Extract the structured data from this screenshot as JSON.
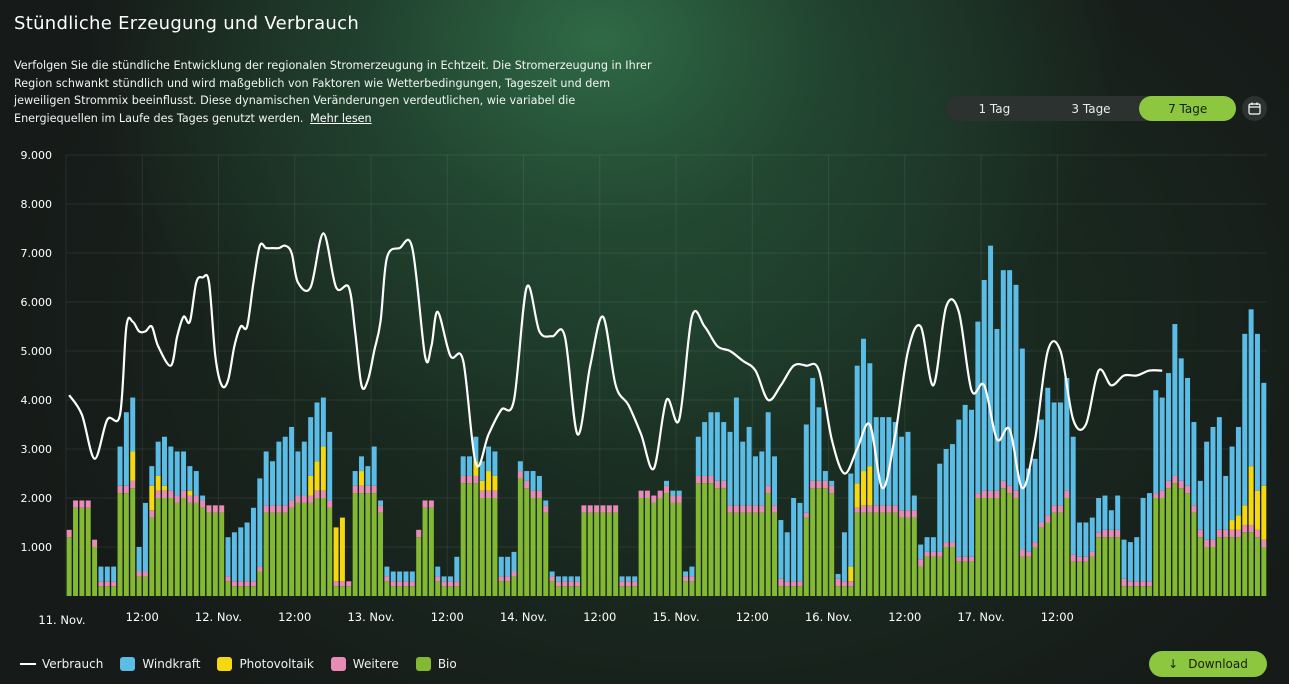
{
  "header": {
    "title": "Stündliche Erzeugung und Verbrauch",
    "description": "Verfolgen Sie die stündliche Entwicklung der regionalen Stromerzeugung in Echtzeit. Die Stromerzeugung in Ihrer Region schwankt stündlich und wird maßgeblich von Faktoren wie Wetterbedingungen, Tageszeit und dem jeweiligen Strommix beeinflusst. Diese dynamischen Veränderungen verdeutlichen, wie variabel die Energiequellen im Laufe des Tages genutzt werden.",
    "more_link": "Mehr lesen"
  },
  "range_tabs": [
    {
      "label": "1 Tag",
      "active": false
    },
    {
      "label": "3 Tage",
      "active": false
    },
    {
      "label": "7 Tage",
      "active": true
    }
  ],
  "icons": {
    "calendar": "calendar-icon",
    "download": "arrow-down-icon"
  },
  "download_label": "Download",
  "colors": {
    "accent": "#8dc63f",
    "Bio": "#82b832",
    "Weitere": "#e88bb5",
    "Photovoltaik": "#f5d80f",
    "Windkraft": "#5bbde6",
    "Verbrauch": "#ffffff"
  },
  "legend": [
    {
      "label": "Verbrauch",
      "kind": "line",
      "color": "#ffffff"
    },
    {
      "label": "Windkraft",
      "kind": "box",
      "color": "#5bbde6"
    },
    {
      "label": "Photovoltaik",
      "kind": "box",
      "color": "#f5d80f"
    },
    {
      "label": "Weitere",
      "kind": "box",
      "color": "#e88bb5"
    },
    {
      "label": "Bio",
      "kind": "box",
      "color": "#82b832"
    }
  ],
  "chart_data": {
    "type": "bar",
    "stacked": true,
    "ylim": [
      0,
      9000
    ],
    "y_ticks": [
      "1.000",
      "2.000",
      "3.000",
      "4.000",
      "5.000",
      "6.000",
      "7.000",
      "8.000",
      "9.000"
    ],
    "y_tick_values": [
      1000,
      2000,
      3000,
      4000,
      5000,
      6000,
      7000,
      8000,
      9000
    ],
    "x_tick_labels": [
      "11. Nov.",
      "12:00",
      "12. Nov.",
      "12:00",
      "13. Nov.",
      "12:00",
      "14. Nov.",
      "12:00",
      "15. Nov.",
      "12:00",
      "16. Nov.",
      "12:00",
      "17. Nov.",
      "12:00"
    ],
    "x_tick_hours": [
      0,
      12,
      24,
      36,
      48,
      60,
      72,
      84,
      96,
      108,
      120,
      132,
      144,
      156
    ],
    "grid": true,
    "legend_position": "bottom-left",
    "series_order": [
      "Bio",
      "Weitere",
      "Photovoltaik",
      "Windkraft"
    ],
    "series": [
      {
        "name": "Bio",
        "color": "#82b832",
        "values": [
          1200,
          1800,
          1800,
          1800,
          1000,
          200,
          200,
          200,
          2100,
          2100,
          2200,
          400,
          400,
          1600,
          2000,
          2000,
          2000,
          1900,
          2000,
          1900,
          1900,
          1800,
          1700,
          1700,
          1700,
          300,
          200,
          200,
          200,
          200,
          500,
          1700,
          1700,
          1700,
          1700,
          1800,
          1900,
          1900,
          1900,
          2000,
          2000,
          1800,
          200,
          200,
          200,
          2100,
          2100,
          2100,
          2100,
          1700,
          300,
          200,
          200,
          200,
          200,
          1200,
          1800,
          1800,
          300,
          200,
          200,
          200,
          2300,
          2300,
          2300,
          2000,
          2000,
          2000,
          300,
          300,
          400,
          2400,
          2200,
          2000,
          2000,
          1700,
          300,
          200,
          200,
          200,
          200,
          1700,
          1700,
          1700,
          1700,
          1700,
          1700,
          200,
          200,
          200,
          2000,
          2000,
          1900,
          2000,
          2100,
          1900,
          1900,
          300,
          300,
          2300,
          2300,
          2300,
          2200,
          2200,
          1700,
          1700,
          1700,
          1700,
          1700,
          1700,
          2100,
          1700,
          200,
          200,
          200,
          200,
          1600,
          2200,
          2200,
          2200,
          2100,
          200,
          200,
          200,
          1700,
          1700,
          1700,
          1700,
          1700,
          1700,
          1700,
          1600,
          1600,
          1600,
          600,
          800,
          800,
          800,
          1000,
          1000,
          700,
          700,
          700,
          2000,
          2000,
          2000,
          2000,
          2200,
          2100,
          2000,
          800,
          800,
          1000,
          1400,
          1500,
          1700,
          1700,
          2000,
          700,
          700,
          700,
          800,
          1200,
          1200,
          1200,
          1200,
          200,
          200,
          200,
          200,
          200,
          2000,
          2000,
          2200,
          2300,
          2200,
          2100,
          1700,
          1200,
          1000,
          1000,
          1200,
          1200,
          1200,
          1200,
          1300,
          1300,
          1200,
          1000
        ],
        "line_values": null
      },
      {
        "name": "Weitere",
        "color": "#e88bb5",
        "values": [
          150,
          150,
          150,
          150,
          150,
          100,
          100,
          100,
          150,
          150,
          150,
          100,
          100,
          150,
          150,
          150,
          150,
          150,
          150,
          150,
          150,
          150,
          150,
          150,
          150,
          100,
          100,
          100,
          100,
          100,
          100,
          150,
          150,
          150,
          150,
          150,
          150,
          150,
          150,
          150,
          150,
          150,
          100,
          100,
          100,
          150,
          150,
          150,
          150,
          150,
          100,
          100,
          100,
          100,
          100,
          150,
          150,
          150,
          100,
          100,
          100,
          100,
          150,
          150,
          150,
          150,
          150,
          150,
          100,
          100,
          100,
          150,
          150,
          150,
          150,
          150,
          100,
          100,
          100,
          100,
          100,
          150,
          150,
          150,
          150,
          150,
          150,
          100,
          100,
          100,
          150,
          150,
          150,
          150,
          150,
          150,
          150,
          100,
          100,
          150,
          150,
          150,
          150,
          150,
          150,
          150,
          150,
          150,
          150,
          150,
          150,
          150,
          150,
          100,
          100,
          100,
          100,
          150,
          150,
          150,
          150,
          150,
          100,
          100,
          100,
          150,
          150,
          150,
          150,
          150,
          150,
          150,
          150,
          150,
          150,
          100,
          100,
          100,
          100,
          100,
          100,
          100,
          100,
          100,
          150,
          150,
          150,
          150,
          150,
          150,
          150,
          100,
          100,
          100,
          150,
          150,
          150,
          150,
          150,
          100,
          100,
          100,
          100,
          150,
          150,
          150,
          150,
          100,
          100,
          100,
          100,
          100,
          150,
          150,
          150,
          150,
          150,
          150,
          150,
          150,
          150,
          150,
          150,
          150,
          150,
          150,
          150,
          150,
          150,
          150
        ]
      },
      {
        "name": "Photovoltaik",
        "color": "#f5d80f",
        "values": [
          0,
          0,
          0,
          0,
          0,
          0,
          0,
          0,
          0,
          0,
          600,
          0,
          0,
          500,
          300,
          100,
          0,
          0,
          0,
          100,
          0,
          0,
          0,
          0,
          0,
          0,
          0,
          0,
          0,
          0,
          0,
          0,
          0,
          0,
          0,
          0,
          0,
          0,
          400,
          600,
          900,
          0,
          1100,
          1300,
          0,
          0,
          300,
          0,
          0,
          0,
          0,
          0,
          0,
          0,
          0,
          0,
          0,
          0,
          0,
          0,
          0,
          0,
          0,
          0,
          300,
          200,
          400,
          300,
          0,
          0,
          0,
          0,
          0,
          0,
          0,
          0,
          0,
          0,
          0,
          0,
          0,
          0,
          0,
          0,
          0,
          0,
          0,
          0,
          0,
          0,
          0,
          0,
          0,
          0,
          0,
          0,
          0,
          0,
          0,
          0,
          0,
          0,
          0,
          0,
          0,
          0,
          0,
          0,
          0,
          0,
          0,
          0,
          0,
          0,
          0,
          0,
          0,
          0,
          0,
          0,
          0,
          0,
          0,
          300,
          500,
          700,
          800,
          0,
          0,
          0,
          0,
          0,
          0,
          0,
          0,
          0,
          0,
          0,
          0,
          0,
          0,
          0,
          0,
          0,
          0,
          0,
          0,
          0,
          0,
          0,
          0,
          0,
          0,
          0,
          0,
          0,
          0,
          0,
          0,
          0,
          0,
          0,
          0,
          0,
          0,
          0,
          0,
          0,
          0,
          0,
          0,
          0,
          0,
          0,
          0,
          0,
          0,
          0,
          0,
          0,
          0,
          0,
          0,
          200,
          300,
          400,
          1200,
          800,
          1100,
          0,
          0,
          0,
          0,
          0,
          0,
          0,
          0,
          0,
          0,
          0,
          0,
          0,
          0
        ]
      },
      {
        "name": "Windkraft",
        "color": "#5bbde6",
        "values": [
          0,
          0,
          0,
          0,
          0,
          300,
          300,
          300,
          800,
          1500,
          1100,
          500,
          1400,
          400,
          700,
          1000,
          900,
          900,
          800,
          500,
          500,
          100,
          0,
          0,
          0,
          800,
          1000,
          1100,
          1200,
          1500,
          1800,
          1100,
          900,
          1300,
          1400,
          1500,
          900,
          1100,
          1200,
          1200,
          1000,
          1400,
          0,
          0,
          0,
          300,
          300,
          400,
          800,
          100,
          200,
          200,
          200,
          200,
          200,
          0,
          0,
          0,
          200,
          100,
          100,
          500,
          400,
          400,
          500,
          400,
          500,
          500,
          400,
          400,
          400,
          200,
          200,
          400,
          300,
          100,
          100,
          100,
          100,
          100,
          100,
          0,
          0,
          0,
          0,
          0,
          0,
          100,
          100,
          100,
          0,
          0,
          0,
          0,
          100,
          100,
          100,
          100,
          200,
          800,
          1100,
          1300,
          1400,
          1200,
          1500,
          2200,
          1300,
          1600,
          1000,
          1100,
          1500,
          1000,
          1200,
          1000,
          1700,
          1600,
          1800,
          2100,
          1500,
          200,
          100,
          100,
          1000,
          1900,
          2400,
          2700,
          2100,
          1800,
          1800,
          1800,
          1700,
          1500,
          1600,
          300,
          300,
          300,
          300,
          1800,
          1900,
          2000,
          2800,
          3100,
          3000,
          3500,
          4300,
          5000,
          3300,
          4300,
          4400,
          4200,
          4100,
          1700,
          1700,
          2100,
          2600,
          2100,
          2100,
          2300,
          2400,
          700,
          700,
          700,
          700,
          700,
          400,
          700,
          800,
          800,
          900,
          1700,
          1800,
          2100,
          1900,
          2200,
          3100,
          2500,
          2200,
          1700,
          1000,
          2000,
          2300,
          2300,
          1100,
          1500,
          1800,
          3500,
          3200,
          3200,
          2100,
          1800,
          1700,
          1700,
          1800
        ]
      }
    ],
    "consumption": {
      "name": "Verbrauch",
      "color": "#ffffff",
      "hours": [
        0,
        2,
        4,
        6,
        8,
        9,
        10,
        11,
        12,
        13,
        14,
        16,
        17,
        18,
        19,
        20,
        21,
        22,
        23,
        24,
        25,
        26,
        27,
        28,
        29,
        30,
        31,
        32,
        33,
        34,
        35,
        36,
        38,
        40,
        42,
        44,
        45,
        46,
        47,
        48,
        49,
        50,
        52,
        54,
        56,
        57,
        58,
        60,
        62,
        64,
        66,
        68,
        70,
        72,
        74,
        76,
        78,
        80,
        82,
        84,
        86,
        88,
        90,
        92,
        94,
        96,
        98,
        100,
        102,
        104,
        106,
        108,
        110,
        112,
        114,
        116,
        118,
        120,
        122,
        124,
        126,
        128,
        130,
        132,
        134,
        136,
        138,
        140,
        142,
        144,
        146,
        148,
        150,
        152,
        154,
        156,
        158,
        160,
        162,
        164,
        166,
        168,
        170,
        172
      ],
      "values": [
        4100,
        3700,
        2800,
        3600,
        3700,
        5500,
        5600,
        5400,
        5400,
        5500,
        5100,
        4700,
        5300,
        5700,
        5600,
        6400,
        6500,
        6400,
        4900,
        4300,
        4400,
        5100,
        5500,
        5500,
        6400,
        7150,
        7100,
        7100,
        7100,
        7150,
        7000,
        6400,
        6300,
        7400,
        6300,
        6300,
        5400,
        4300,
        4400,
        5000,
        5600,
        6900,
        7100,
        7100,
        4900,
        5100,
        5800,
        4900,
        4800,
        2700,
        3300,
        3800,
        4000,
        6300,
        5400,
        5300,
        5300,
        3300,
        4700,
        5700,
        4300,
        3900,
        3300,
        2600,
        4000,
        3600,
        5700,
        5500,
        5100,
        5000,
        4800,
        4600,
        4000,
        4300,
        4700,
        4700,
        4600,
        3200,
        2500,
        3000,
        3500,
        2200,
        3300,
        5000,
        5500,
        4300,
        5900,
        5800,
        4200,
        4300,
        3200,
        3400,
        2200,
        3200,
        5000,
        5000,
        3600,
        3500,
        4600,
        4300,
        4500,
        4500,
        4600,
        4600
      ]
    }
  }
}
